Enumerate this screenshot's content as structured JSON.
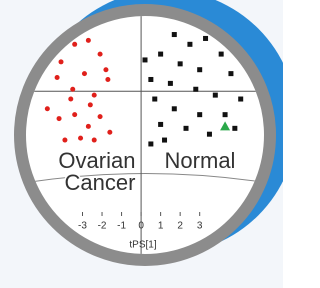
{
  "chart_data": {
    "type": "scatter",
    "xlabel": "tPS[1]",
    "xlim": [
      -6.2,
      6.6
    ],
    "ylim": [
      -4.8,
      3.9
    ],
    "xticks": [
      -3,
      -2,
      -1,
      0,
      1,
      2,
      3
    ],
    "series": [
      {
        "name": "Ovarian Cancer",
        "color": "#e0201b",
        "marker": "circle",
        "x": [
          -4.7,
          -4.1,
          -3.4,
          -2.7,
          -2.1,
          -4.3,
          -3.5,
          -2.9,
          -2.4,
          -1.7,
          -4.8,
          -4.2,
          -3.4,
          -2.7,
          -2.1,
          -3.9,
          -3.1,
          -2.4,
          -1.6,
          -3.6,
          -2.6,
          -1.8
        ],
        "values": [
          2.2,
          1.5,
          2.4,
          2.6,
          1.9,
          0.7,
          0.1,
          0.9,
          -0.2,
          0.6,
          -0.9,
          -1.4,
          -1.2,
          -1.8,
          -1.3,
          -2.5,
          -2.4,
          -2.5,
          -2.1,
          -0.4,
          -0.7,
          1.1
        ]
      },
      {
        "name": "Normal",
        "color": "#111111",
        "marker": "square",
        "x": [
          1.7,
          2.5,
          3.3,
          4.1,
          1.0,
          2.0,
          3.0,
          4.6,
          0.5,
          1.5,
          2.8,
          3.8,
          5.1,
          0.7,
          1.7,
          3.0,
          4.3,
          1.0,
          2.3,
          3.5,
          0.5,
          4.8,
          1.2,
          0.2
        ],
        "values": [
          2.9,
          2.4,
          2.7,
          1.9,
          1.9,
          1.4,
          1.1,
          0.9,
          0.6,
          0.4,
          0.1,
          -0.2,
          -0.4,
          -0.4,
          -0.9,
          -1.2,
          -1.2,
          -1.7,
          -1.9,
          -2.2,
          -2.7,
          -1.9,
          -2.5,
          1.6
        ]
      },
      {
        "color": "#2aa84a",
        "marker": "triangle",
        "x": [
          4.3
        ],
        "values": [
          -1.8
        ]
      }
    ]
  }
}
